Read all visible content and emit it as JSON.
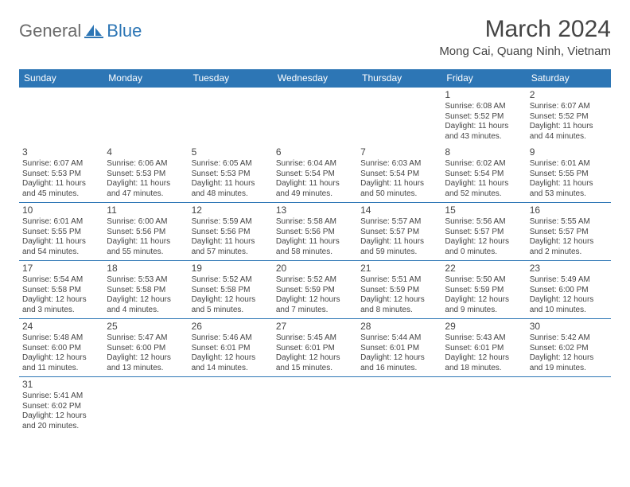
{
  "logo": {
    "part1": "General",
    "part2": "Blue"
  },
  "title": "March 2024",
  "location": "Mong Cai, Quang Ninh, Vietnam",
  "dayHeaders": [
    "Sunday",
    "Monday",
    "Tuesday",
    "Wednesday",
    "Thursday",
    "Friday",
    "Saturday"
  ],
  "colors": {
    "headerBg": "#2d76b5",
    "border": "#2d76b5",
    "textGray": "#6b6b6b",
    "textDark": "#444444"
  },
  "typography": {
    "titleSize": 30,
    "locationSize": 15,
    "headerSize": 12,
    "cellSize": 10,
    "daynumSize": 12
  },
  "weeks": [
    [
      null,
      null,
      null,
      null,
      null,
      {
        "n": "1",
        "sr": "Sunrise: 6:08 AM",
        "ss": "Sunset: 5:52 PM",
        "dl": "Daylight: 11 hours and 43 minutes."
      },
      {
        "n": "2",
        "sr": "Sunrise: 6:07 AM",
        "ss": "Sunset: 5:52 PM",
        "dl": "Daylight: 11 hours and 44 minutes."
      }
    ],
    [
      {
        "n": "3",
        "sr": "Sunrise: 6:07 AM",
        "ss": "Sunset: 5:53 PM",
        "dl": "Daylight: 11 hours and 45 minutes."
      },
      {
        "n": "4",
        "sr": "Sunrise: 6:06 AM",
        "ss": "Sunset: 5:53 PM",
        "dl": "Daylight: 11 hours and 47 minutes."
      },
      {
        "n": "5",
        "sr": "Sunrise: 6:05 AM",
        "ss": "Sunset: 5:53 PM",
        "dl": "Daylight: 11 hours and 48 minutes."
      },
      {
        "n": "6",
        "sr": "Sunrise: 6:04 AM",
        "ss": "Sunset: 5:54 PM",
        "dl": "Daylight: 11 hours and 49 minutes."
      },
      {
        "n": "7",
        "sr": "Sunrise: 6:03 AM",
        "ss": "Sunset: 5:54 PM",
        "dl": "Daylight: 11 hours and 50 minutes."
      },
      {
        "n": "8",
        "sr": "Sunrise: 6:02 AM",
        "ss": "Sunset: 5:54 PM",
        "dl": "Daylight: 11 hours and 52 minutes."
      },
      {
        "n": "9",
        "sr": "Sunrise: 6:01 AM",
        "ss": "Sunset: 5:55 PM",
        "dl": "Daylight: 11 hours and 53 minutes."
      }
    ],
    [
      {
        "n": "10",
        "sr": "Sunrise: 6:01 AM",
        "ss": "Sunset: 5:55 PM",
        "dl": "Daylight: 11 hours and 54 minutes."
      },
      {
        "n": "11",
        "sr": "Sunrise: 6:00 AM",
        "ss": "Sunset: 5:56 PM",
        "dl": "Daylight: 11 hours and 55 minutes."
      },
      {
        "n": "12",
        "sr": "Sunrise: 5:59 AM",
        "ss": "Sunset: 5:56 PM",
        "dl": "Daylight: 11 hours and 57 minutes."
      },
      {
        "n": "13",
        "sr": "Sunrise: 5:58 AM",
        "ss": "Sunset: 5:56 PM",
        "dl": "Daylight: 11 hours and 58 minutes."
      },
      {
        "n": "14",
        "sr": "Sunrise: 5:57 AM",
        "ss": "Sunset: 5:57 PM",
        "dl": "Daylight: 11 hours and 59 minutes."
      },
      {
        "n": "15",
        "sr": "Sunrise: 5:56 AM",
        "ss": "Sunset: 5:57 PM",
        "dl": "Daylight: 12 hours and 0 minutes."
      },
      {
        "n": "16",
        "sr": "Sunrise: 5:55 AM",
        "ss": "Sunset: 5:57 PM",
        "dl": "Daylight: 12 hours and 2 minutes."
      }
    ],
    [
      {
        "n": "17",
        "sr": "Sunrise: 5:54 AM",
        "ss": "Sunset: 5:58 PM",
        "dl": "Daylight: 12 hours and 3 minutes."
      },
      {
        "n": "18",
        "sr": "Sunrise: 5:53 AM",
        "ss": "Sunset: 5:58 PM",
        "dl": "Daylight: 12 hours and 4 minutes."
      },
      {
        "n": "19",
        "sr": "Sunrise: 5:52 AM",
        "ss": "Sunset: 5:58 PM",
        "dl": "Daylight: 12 hours and 5 minutes."
      },
      {
        "n": "20",
        "sr": "Sunrise: 5:52 AM",
        "ss": "Sunset: 5:59 PM",
        "dl": "Daylight: 12 hours and 7 minutes."
      },
      {
        "n": "21",
        "sr": "Sunrise: 5:51 AM",
        "ss": "Sunset: 5:59 PM",
        "dl": "Daylight: 12 hours and 8 minutes."
      },
      {
        "n": "22",
        "sr": "Sunrise: 5:50 AM",
        "ss": "Sunset: 5:59 PM",
        "dl": "Daylight: 12 hours and 9 minutes."
      },
      {
        "n": "23",
        "sr": "Sunrise: 5:49 AM",
        "ss": "Sunset: 6:00 PM",
        "dl": "Daylight: 12 hours and 10 minutes."
      }
    ],
    [
      {
        "n": "24",
        "sr": "Sunrise: 5:48 AM",
        "ss": "Sunset: 6:00 PM",
        "dl": "Daylight: 12 hours and 11 minutes."
      },
      {
        "n": "25",
        "sr": "Sunrise: 5:47 AM",
        "ss": "Sunset: 6:00 PM",
        "dl": "Daylight: 12 hours and 13 minutes."
      },
      {
        "n": "26",
        "sr": "Sunrise: 5:46 AM",
        "ss": "Sunset: 6:01 PM",
        "dl": "Daylight: 12 hours and 14 minutes."
      },
      {
        "n": "27",
        "sr": "Sunrise: 5:45 AM",
        "ss": "Sunset: 6:01 PM",
        "dl": "Daylight: 12 hours and 15 minutes."
      },
      {
        "n": "28",
        "sr": "Sunrise: 5:44 AM",
        "ss": "Sunset: 6:01 PM",
        "dl": "Daylight: 12 hours and 16 minutes."
      },
      {
        "n": "29",
        "sr": "Sunrise: 5:43 AM",
        "ss": "Sunset: 6:01 PM",
        "dl": "Daylight: 12 hours and 18 minutes."
      },
      {
        "n": "30",
        "sr": "Sunrise: 5:42 AM",
        "ss": "Sunset: 6:02 PM",
        "dl": "Daylight: 12 hours and 19 minutes."
      }
    ],
    [
      {
        "n": "31",
        "sr": "Sunrise: 5:41 AM",
        "ss": "Sunset: 6:02 PM",
        "dl": "Daylight: 12 hours and 20 minutes."
      },
      null,
      null,
      null,
      null,
      null,
      null
    ]
  ]
}
